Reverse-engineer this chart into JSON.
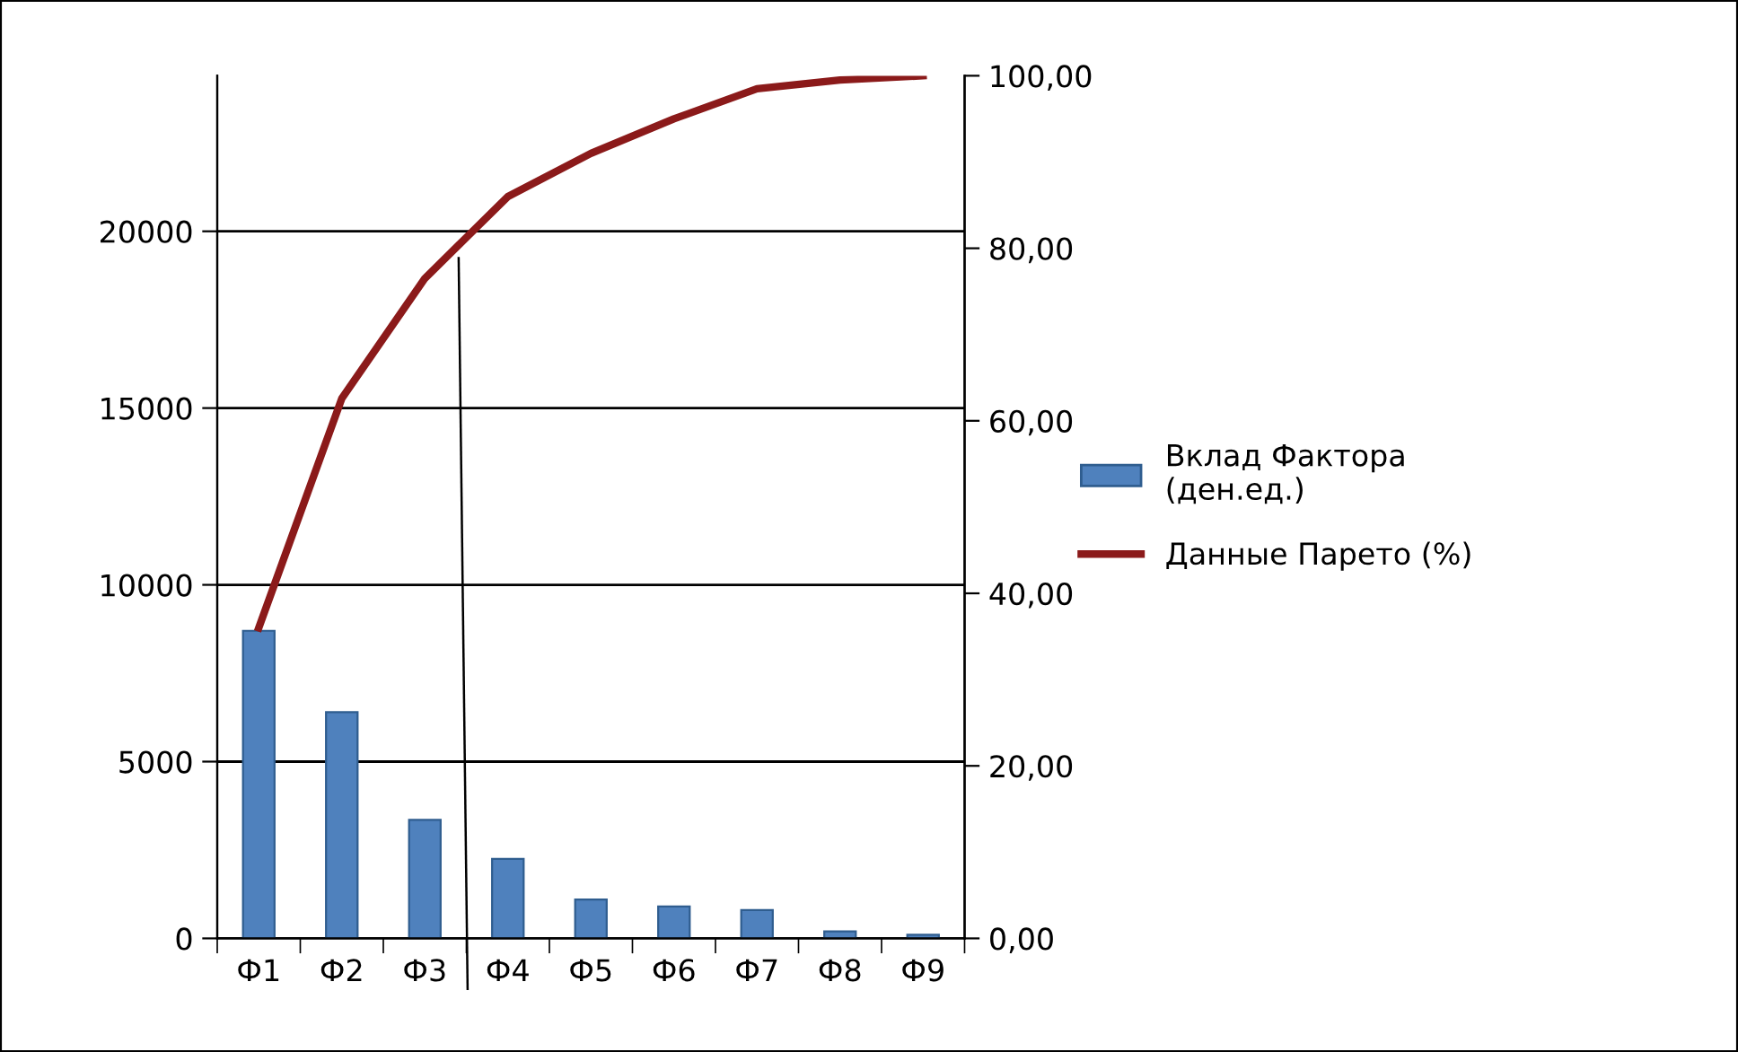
{
  "chart_data": {
    "type": "bar",
    "categories": [
      "Ф1",
      "Ф2",
      "Ф3",
      "Ф4",
      "Ф5",
      "Ф6",
      "Ф7",
      "Ф8",
      "Ф9"
    ],
    "series": [
      {
        "name": "Вклад Фактора (ден.ед.)",
        "color": "#4f81bd",
        "values": [
          8700,
          6400,
          3350,
          2250,
          1100,
          900,
          800,
          200,
          100
        ]
      },
      {
        "name": "Данные Парето (%)",
        "type": "line",
        "axis": "y2",
        "color": "#8b1a1a",
        "values": [
          36,
          62.6,
          76.5,
          86,
          91,
          95,
          98.5,
          99.5,
          100
        ]
      }
    ],
    "ylim": [
      0,
      24400
    ],
    "yticks": [
      0,
      5000,
      10000,
      15000,
      20000
    ],
    "y2lim": [
      0,
      100
    ],
    "y2ticks": [
      {
        "value": 0,
        "label": "0,00"
      },
      {
        "value": 20,
        "label": "20,00"
      },
      {
        "value": 40,
        "label": "40,00"
      },
      {
        "value": 60,
        "label": "60,00"
      },
      {
        "value": 80,
        "label": "80,00"
      },
      {
        "value": 100,
        "label": "100,00"
      }
    ],
    "grid": "y",
    "legend": "right"
  }
}
